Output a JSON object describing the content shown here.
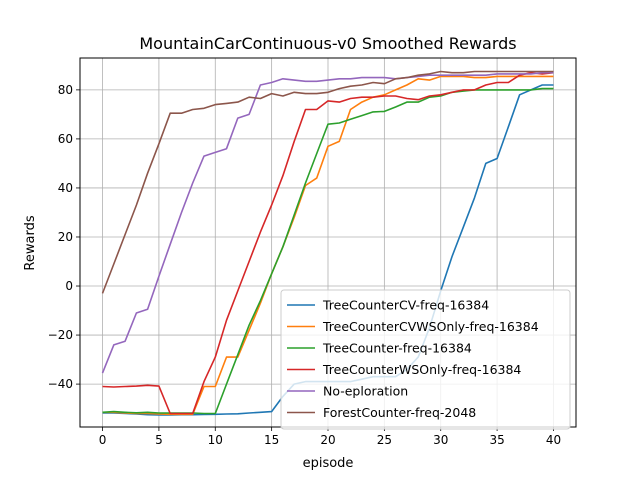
{
  "chart_data": {
    "type": "line",
    "title": "MountainCarContinuous-v0 Smoothed Rewards",
    "xlabel": "episode",
    "ylabel": "Rewards",
    "xlim": [
      -2,
      42
    ],
    "ylim": [
      -57.5,
      93
    ],
    "xticks": [
      0,
      5,
      10,
      15,
      20,
      25,
      30,
      35,
      40
    ],
    "yticks": [
      -40,
      -20,
      0,
      20,
      40,
      60,
      80
    ],
    "grid": true,
    "legend_position": "lower-right",
    "x": [
      0,
      1,
      2,
      3,
      4,
      5,
      6,
      7,
      8,
      9,
      10,
      11,
      12,
      13,
      14,
      15,
      16,
      17,
      18,
      19,
      20,
      21,
      22,
      23,
      24,
      25,
      26,
      27,
      28,
      29,
      30,
      31,
      32,
      33,
      34,
      35,
      36,
      37,
      38,
      39,
      40
    ],
    "series": [
      {
        "name": "TreeCounterCV-freq-16384",
        "color": "#1f77b4",
        "values": [
          -51.8,
          -51.8,
          -52.0,
          -52.2,
          -52.5,
          -52.6,
          -52.6,
          -52.5,
          -52.5,
          -52.4,
          -52.3,
          -52.2,
          -52.1,
          -51.8,
          -51.5,
          -51.2,
          -45,
          -40,
          -39,
          -39,
          -39,
          -39,
          -39,
          -38,
          -37,
          -37,
          -37,
          -34,
          -29,
          -17,
          -2,
          12,
          24,
          36,
          50,
          52,
          65,
          78,
          80,
          82,
          82
        ]
      },
      {
        "name": "TreeCounterCVWSOnly-freq-16384",
        "color": "#ff7f0e",
        "values": [
          -51.5,
          -51.5,
          -51.8,
          -52.0,
          -52.0,
          -52.2,
          -52.3,
          -52.3,
          -52.3,
          -41,
          -41,
          -29,
          -29,
          -18,
          -7,
          5,
          16,
          28,
          41,
          44,
          57,
          59,
          72,
          75,
          77,
          78,
          80,
          82,
          84.5,
          84,
          85.5,
          85.5,
          85.5,
          85,
          85,
          85.5,
          85.5,
          85.5,
          85.5,
          85.5,
          85.5
        ]
      },
      {
        "name": "TreeCounter-freq-16384",
        "color": "#2ca02c",
        "values": [
          -51.5,
          -51.2,
          -51.5,
          -51.7,
          -51.5,
          -51.8,
          -51.8,
          -51.8,
          -51.8,
          -52.0,
          -52.0,
          -40,
          -28,
          -16,
          -6,
          5,
          16,
          29,
          42,
          54,
          66,
          66.5,
          68,
          69.5,
          71,
          71.2,
          73,
          75,
          75,
          77,
          77.5,
          79,
          79.5,
          80,
          80,
          80,
          80,
          80,
          80,
          80.5,
          80.5
        ]
      },
      {
        "name": "TreeCounterWSOnly-freq-16384",
        "color": "#d62728",
        "values": [
          -41,
          -41.2,
          -41,
          -40.8,
          -40.5,
          -40.8,
          -52,
          -52,
          -52,
          -39,
          -29,
          -14,
          -2,
          10,
          22,
          33,
          45,
          59,
          72,
          72,
          75.5,
          75,
          76.5,
          77,
          77,
          77.5,
          77.5,
          76.5,
          76,
          77.5,
          78,
          79,
          80,
          80,
          82,
          83,
          83,
          86,
          87,
          86.5,
          87
        ]
      },
      {
        "name": "No-eploration",
        "color": "#9467bd",
        "values": [
          -35.5,
          -24,
          -22.5,
          -11,
          -9.5,
          4,
          17,
          30,
          42,
          53,
          54.5,
          56,
          68.5,
          70,
          82,
          83,
          84.5,
          84,
          83.5,
          83.5,
          84,
          84.5,
          84.5,
          85,
          85,
          85,
          84.5,
          85,
          85.5,
          86,
          86,
          86,
          86,
          86,
          86,
          86.5,
          86.5,
          86.5,
          86.5,
          87,
          87
        ]
      },
      {
        "name": "ForestCounter-freq-2048",
        "color": "#8c564b",
        "values": [
          -3,
          9,
          21,
          33,
          46,
          58,
          70.5,
          70.5,
          72,
          72.5,
          74,
          74.5,
          75,
          77,
          76.5,
          78.5,
          77.5,
          79,
          78.5,
          78.5,
          79,
          80.5,
          81.5,
          82,
          83,
          82.5,
          84.5,
          85,
          86,
          86.5,
          87.5,
          87,
          87,
          87.5,
          87.5,
          87.5,
          87.5,
          87.5,
          87.5,
          87.5,
          87.5
        ]
      }
    ]
  }
}
